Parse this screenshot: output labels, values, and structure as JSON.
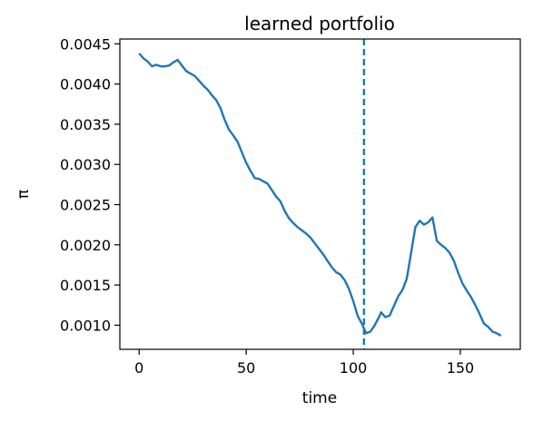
{
  "chart_data": {
    "type": "line",
    "title": "learned portfolio",
    "xlabel": "time",
    "ylabel": "π",
    "xlim": [
      -9,
      178
    ],
    "ylim": [
      0.0007,
      0.00456
    ],
    "xticks": [
      0,
      50,
      100,
      150
    ],
    "yticks": [
      0.001,
      0.0015,
      0.002,
      0.0025,
      0.003,
      0.0035,
      0.004,
      0.0045
    ],
    "ytick_labels": [
      "0.0010",
      "0.0015",
      "0.0020",
      "0.0025",
      "0.0030",
      "0.0035",
      "0.0040",
      "0.0045"
    ],
    "grid": false,
    "line_color": "#1f77b4",
    "vline": {
      "x": 105,
      "style": "dashed",
      "color": "#1f77b4"
    },
    "series": [
      {
        "x": [
          0,
          2,
          4,
          6,
          8,
          10,
          12,
          14,
          16,
          18,
          20,
          22,
          24,
          26,
          28,
          30,
          32,
          34,
          36,
          38,
          40,
          42,
          44,
          46,
          48,
          50,
          52,
          54,
          56,
          58,
          60,
          62,
          64,
          66,
          68,
          70,
          72,
          74,
          76,
          78,
          80,
          82,
          84,
          86,
          88,
          90,
          92,
          94,
          96,
          98,
          100,
          102,
          104,
          106,
          108,
          110,
          112,
          113,
          115,
          117,
          119,
          121,
          123,
          125,
          127,
          129,
          131,
          133,
          135,
          137,
          139,
          141,
          143,
          145,
          147,
          149,
          151,
          153,
          155,
          157,
          159,
          161,
          163,
          165,
          167,
          169
        ],
        "values": [
          0.00438,
          0.00432,
          0.00428,
          0.00422,
          0.00424,
          0.00422,
          0.00422,
          0.00423,
          0.00427,
          0.0043,
          0.00423,
          0.00416,
          0.00413,
          0.0041,
          0.00404,
          0.00398,
          0.00393,
          0.00386,
          0.0038,
          0.0037,
          0.00355,
          0.00343,
          0.00336,
          0.00328,
          0.00315,
          0.00302,
          0.00292,
          0.00283,
          0.00282,
          0.00279,
          0.00276,
          0.00268,
          0.0026,
          0.00254,
          0.00242,
          0.00233,
          0.00227,
          0.00222,
          0.00218,
          0.00214,
          0.00209,
          0.00202,
          0.00195,
          0.00188,
          0.0018,
          0.00172,
          0.00166,
          0.00163,
          0.00156,
          0.00145,
          0.0013,
          0.00112,
          0.00102,
          0.0009,
          0.00092,
          0.001,
          0.0011,
          0.00116,
          0.0011,
          0.00112,
          0.00124,
          0.00136,
          0.00144,
          0.00158,
          0.0019,
          0.00222,
          0.0023,
          0.00225,
          0.00228,
          0.00234,
          0.00205,
          0.002,
          0.00196,
          0.0019,
          0.0018,
          0.00165,
          0.00152,
          0.00143,
          0.00135,
          0.00125,
          0.00114,
          0.00102,
          0.00098,
          0.00092,
          0.0009,
          0.00087
        ]
      }
    ]
  }
}
